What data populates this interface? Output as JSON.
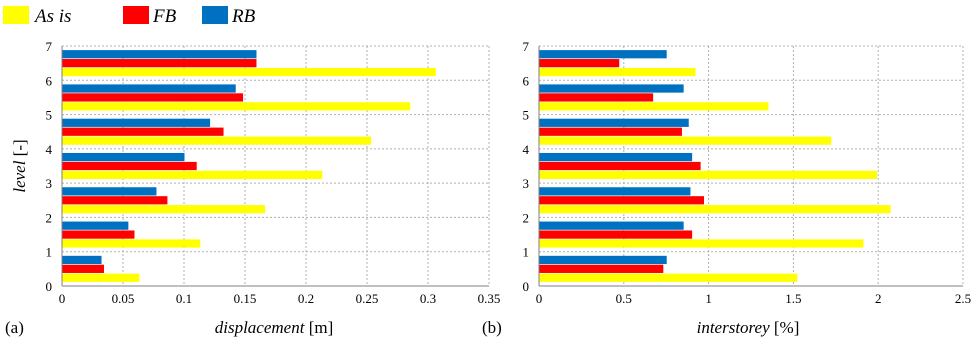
{
  "legend": [
    {
      "label": "As is",
      "color": "#ffff00"
    },
    {
      "label": "FB",
      "color": "#ff0000"
    },
    {
      "label": "RB",
      "color": "#0070c0"
    }
  ],
  "chart_data": [
    {
      "type": "bar",
      "orientation": "horizontal",
      "panel_label": "(a)",
      "xlabel": "displacement",
      "xlabel_unit": " [m]",
      "ylabel": "level",
      "ylabel_unit": " [-]",
      "xlim": [
        0,
        0.35
      ],
      "ylim": [
        0,
        7
      ],
      "xticks": [
        "0",
        "0.05",
        "0.1",
        "0.15",
        "0.2",
        "0.25",
        "0.3",
        "0.35"
      ],
      "yticks": [
        "0",
        "1",
        "2",
        "3",
        "4",
        "5",
        "6",
        "7"
      ],
      "grid": true,
      "legend_position": "top-left",
      "categories": [
        1,
        2,
        3,
        4,
        5,
        6,
        7
      ],
      "series": [
        {
          "name": "As is",
          "values": [
            0.063,
            0.113,
            0.166,
            0.213,
            0.253,
            0.285,
            0.306
          ]
        },
        {
          "name": "FB",
          "values": [
            0.034,
            0.059,
            0.086,
            0.11,
            0.132,
            0.148,
            0.159
          ]
        },
        {
          "name": "RB",
          "values": [
            0.032,
            0.054,
            0.077,
            0.1,
            0.121,
            0.142,
            0.159
          ]
        }
      ]
    },
    {
      "type": "bar",
      "orientation": "horizontal",
      "panel_label": "(b)",
      "xlabel": "interstorey",
      "xlabel_unit": " [%]",
      "ylabel": "",
      "ylabel_unit": "",
      "xlim": [
        0,
        2.5
      ],
      "ylim": [
        0,
        7
      ],
      "xticks": [
        "0",
        "0.5",
        "1",
        "1.5",
        "2",
        "2.5"
      ],
      "yticks": [
        "0",
        "1",
        "2",
        "3",
        "4",
        "5",
        "6",
        "7"
      ],
      "grid": true,
      "legend_position": "top-left",
      "categories": [
        1,
        2,
        3,
        4,
        5,
        6,
        7
      ],
      "series": [
        {
          "name": "As is",
          "values": [
            1.52,
            1.91,
            2.07,
            1.99,
            1.72,
            1.35,
            0.92
          ]
        },
        {
          "name": "FB",
          "values": [
            0.73,
            0.9,
            0.97,
            0.95,
            0.84,
            0.67,
            0.47
          ]
        },
        {
          "name": "RB",
          "values": [
            0.75,
            0.85,
            0.89,
            0.9,
            0.88,
            0.85,
            0.75
          ]
        }
      ]
    }
  ]
}
